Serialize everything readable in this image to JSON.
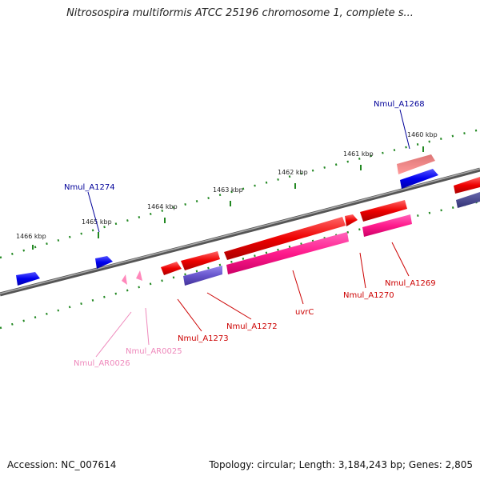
{
  "title": "Nitrosospira multiformis ATCC 25196 chromosome 1, complete s...",
  "footer": {
    "accession": "Accession: NC_007614",
    "summary": "Topology: circular; Length: 3,184,243 bp; Genes: 2,805"
  },
  "kbp_labels": [
    "1466 kbp",
    "1465 kbp",
    "1464 kbp",
    "1463 kbp",
    "1462 kbp",
    "1461 kbp",
    "1460 kbp"
  ],
  "gene_labels": {
    "nmul_a1268": "Nmul_A1268",
    "nmul_a1274": "Nmul_A1274",
    "nmul_a1273": "Nmul_A1273",
    "nmul_a1272": "Nmul_A1272",
    "uvrc": "uvrC",
    "nmul_a1270": "Nmul_A1270",
    "nmul_a1269": "Nmul_A1269",
    "nmul_ar0025": "Nmul_AR0025",
    "nmul_ar0026": "Nmul_AR0026"
  },
  "colors": {
    "forward_gene": "#ee0000",
    "forward_cds": "#ff1a8c",
    "reverse_gene": "#0000ee",
    "reverse_cds": "#6655cc",
    "rna": "#ff88bb",
    "tick": "#228822",
    "backbone": "#808080",
    "label_red": "#cc0000",
    "label_blue": "#000099",
    "label_pink": "#ee88bb"
  }
}
